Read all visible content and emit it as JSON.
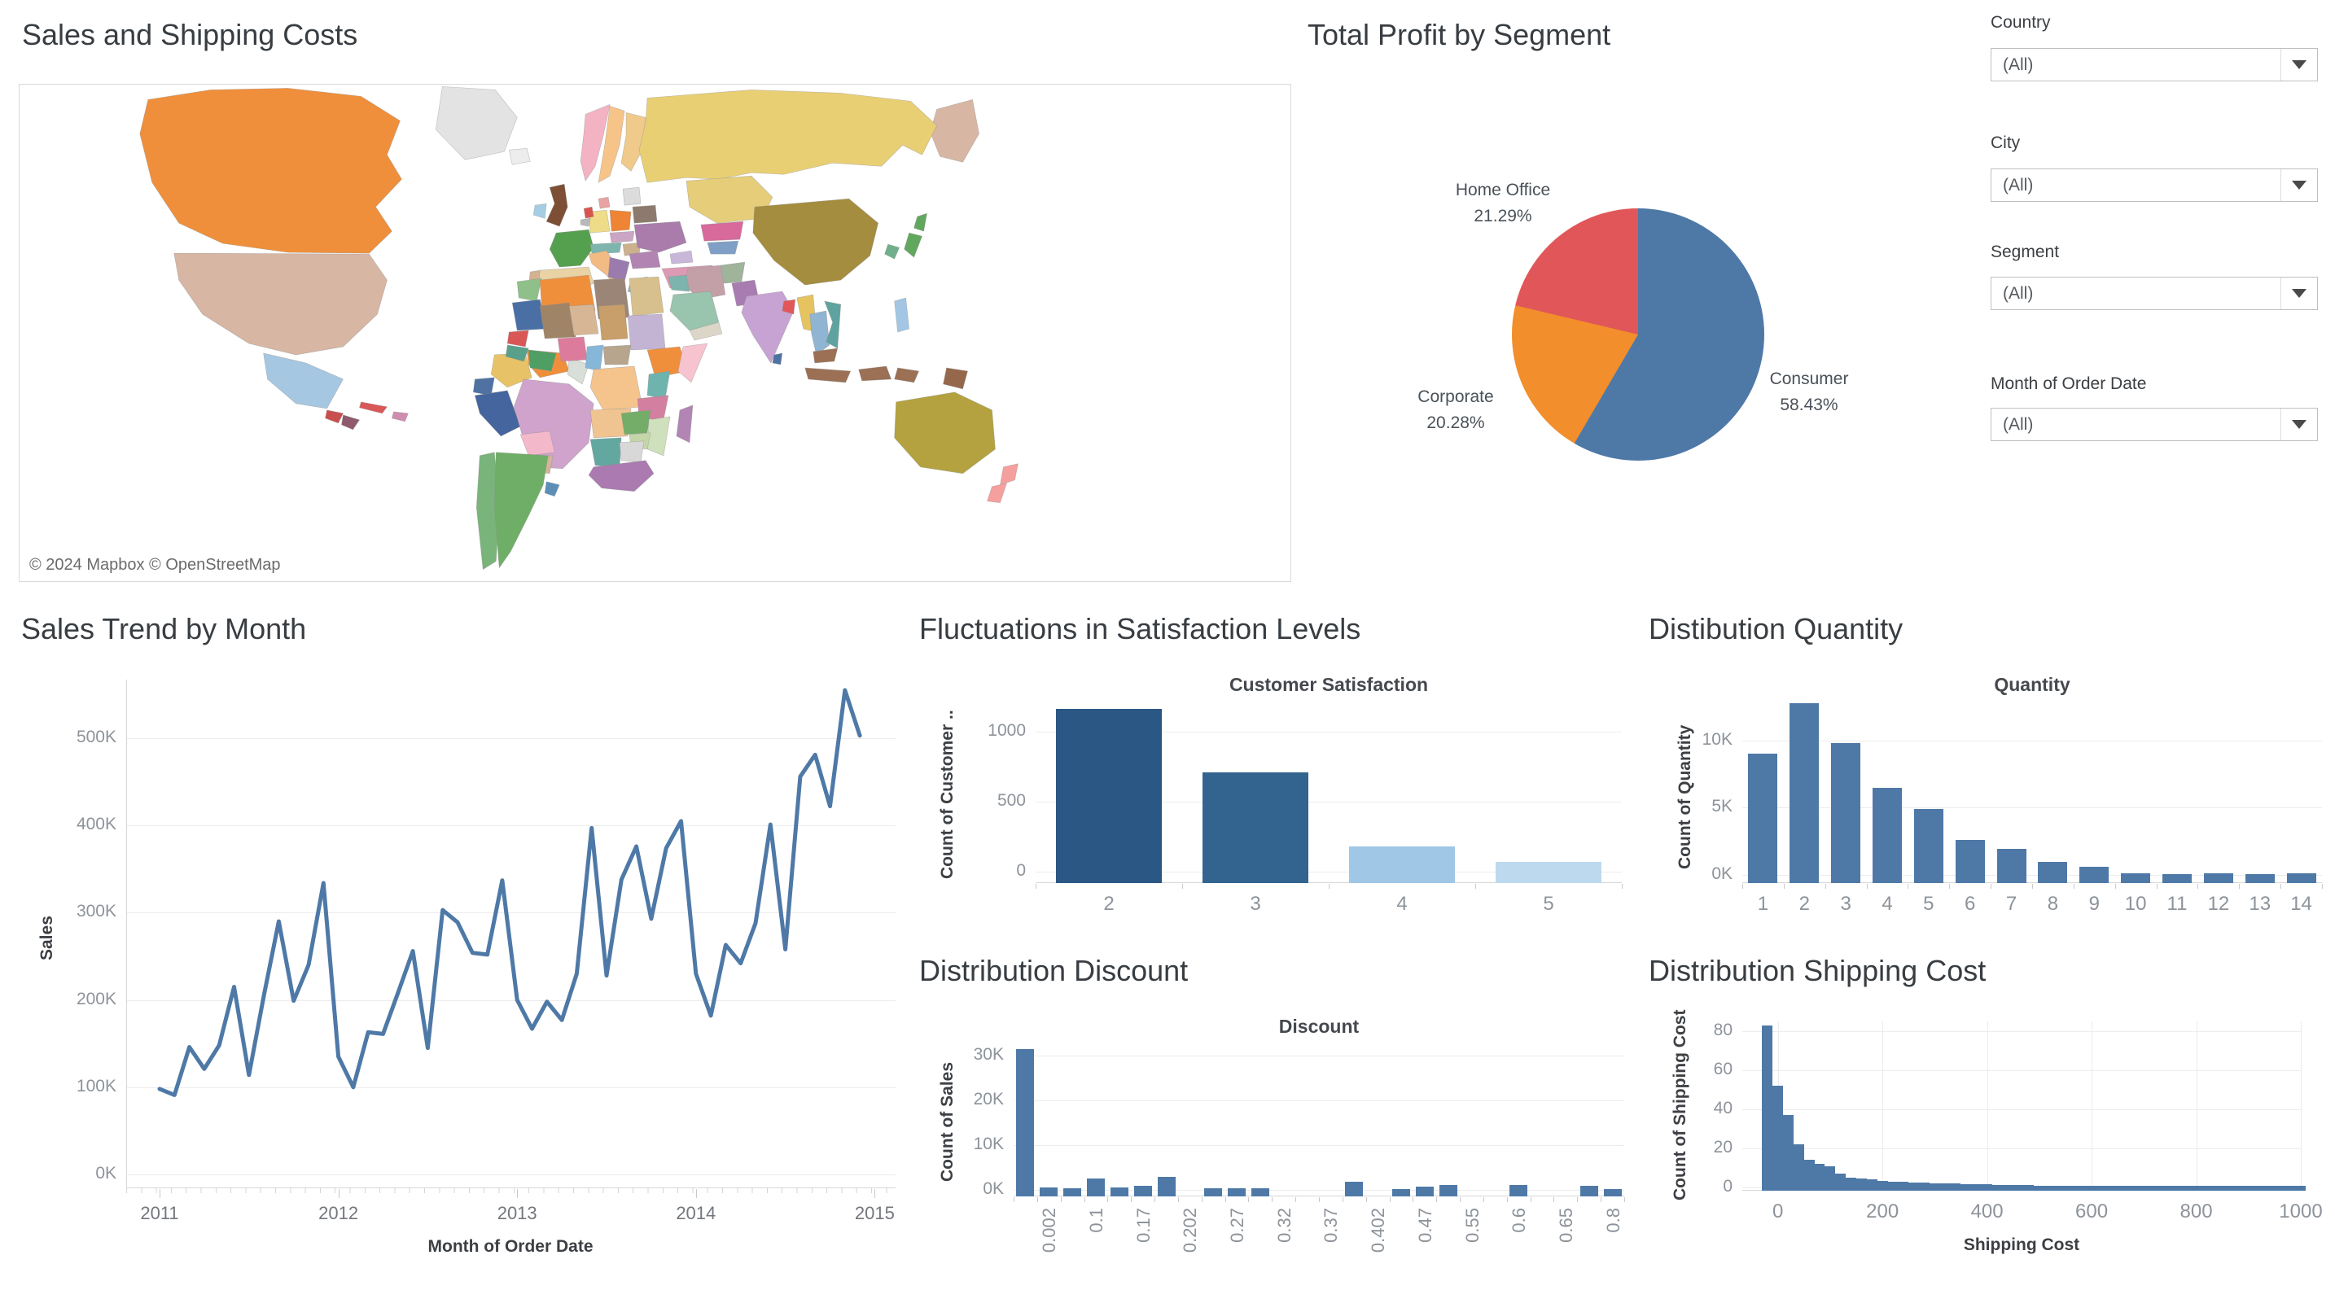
{
  "filters": {
    "items": [
      {
        "label": "Country",
        "value": "(All)"
      },
      {
        "label": "City",
        "value": "(All)"
      },
      {
        "label": "Segment",
        "value": "(All)"
      },
      {
        "label": "Month of Order Date",
        "value": "(All)"
      }
    ]
  },
  "chart_data": [
    {
      "type": "map",
      "panel_title": "Sales and Shipping Costs",
      "attribution": "© 2024 Mapbox © OpenStreetMap",
      "regions": [
        {
          "name": "canada",
          "color": "#ef8f3c"
        },
        {
          "name": "greenland",
          "color": "#e3e3e3"
        },
        {
          "name": "alaska",
          "color": "#d7b6a3"
        },
        {
          "name": "usa",
          "color": "#d7b6a3"
        },
        {
          "name": "mexico",
          "color": "#a6c7e2"
        },
        {
          "name": "guatemala",
          "color": "#c94f4f"
        },
        {
          "name": "honduras",
          "color": "#8f5a6e"
        },
        {
          "name": "cuba",
          "color": "#d95757"
        },
        {
          "name": "hispaniola",
          "color": "#cf8db0"
        },
        {
          "name": "colombia",
          "color": "#e7c266"
        },
        {
          "name": "venezuela",
          "color": "#ef8f3c"
        },
        {
          "name": "guyanas",
          "color": "#d8ded8"
        },
        {
          "name": "ecuador",
          "color": "#4f72a3"
        },
        {
          "name": "peru",
          "color": "#44659e"
        },
        {
          "name": "brazil",
          "color": "#cfa3cb"
        },
        {
          "name": "bolivia",
          "color": "#f4b8cb"
        },
        {
          "name": "paraguay",
          "color": "#d2b49c"
        },
        {
          "name": "chile",
          "color": "#79b47a"
        },
        {
          "name": "argentina",
          "color": "#6fae66"
        },
        {
          "name": "uruguay",
          "color": "#5b8fb8"
        },
        {
          "name": "iceland",
          "color": "#ededed"
        },
        {
          "name": "norway",
          "color": "#f3b3c3"
        },
        {
          "name": "sweden",
          "color": "#f6c489"
        },
        {
          "name": "finland",
          "color": "#f0ca8b"
        },
        {
          "name": "denmark",
          "color": "#e8a2a2"
        },
        {
          "name": "uk",
          "color": "#7d4f35"
        },
        {
          "name": "ireland",
          "color": "#a5cde4"
        },
        {
          "name": "france",
          "color": "#55a04f"
        },
        {
          "name": "spain",
          "color": "#e9d3a4"
        },
        {
          "name": "portugal",
          "color": "#d3b291"
        },
        {
          "name": "germany",
          "color": "#eedc89"
        },
        {
          "name": "netherlands",
          "color": "#d9534f"
        },
        {
          "name": "belgium",
          "color": "#b9b9b9"
        },
        {
          "name": "poland",
          "color": "#ee8434"
        },
        {
          "name": "czechia",
          "color": "#caa6c4"
        },
        {
          "name": "austria",
          "color": "#7fb5af"
        },
        {
          "name": "italy",
          "color": "#f3bb84"
        },
        {
          "name": "ukraine",
          "color": "#a97cab"
        },
        {
          "name": "belarus",
          "color": "#8d7a6e"
        },
        {
          "name": "baltics",
          "color": "#dcdcdc"
        },
        {
          "name": "romania",
          "color": "#b284b2"
        },
        {
          "name": "balkans",
          "color": "#9b7bae"
        },
        {
          "name": "hungary",
          "color": "#cbb18d"
        },
        {
          "name": "greece",
          "color": "#8fb3c9"
        },
        {
          "name": "turkey",
          "color": "#dc9ab4"
        },
        {
          "name": "russia",
          "color": "#e9cf74"
        },
        {
          "name": "kazakhstan",
          "color": "#e5cd7a"
        },
        {
          "name": "central_asia_a",
          "color": "#d76a9a"
        },
        {
          "name": "central_asia_b",
          "color": "#7f9fc6"
        },
        {
          "name": "caucasus",
          "color": "#c8b7d8"
        },
        {
          "name": "mongolia",
          "color": "#f7c08c"
        },
        {
          "name": "china",
          "color": "#a58d3f"
        },
        {
          "name": "japan",
          "color": "#62a75e"
        },
        {
          "name": "skorea",
          "color": "#6fb08a"
        },
        {
          "name": "india",
          "color": "#c7a3d3"
        },
        {
          "name": "pakistan",
          "color": "#a87cb0"
        },
        {
          "name": "afghanistan",
          "color": "#9fb49a"
        },
        {
          "name": "iran",
          "color": "#c3a0a8"
        },
        {
          "name": "iraq",
          "color": "#7eb4ae"
        },
        {
          "name": "saudi",
          "color": "#99c4ad"
        },
        {
          "name": "yemen",
          "color": "#dcd6c8"
        },
        {
          "name": "myanmar",
          "color": "#e5c45f"
        },
        {
          "name": "thailand",
          "color": "#8fb5d2"
        },
        {
          "name": "vietnam",
          "color": "#5fa3a0"
        },
        {
          "name": "bangladesh",
          "color": "#e15759"
        },
        {
          "name": "malaysia",
          "color": "#9b7054"
        },
        {
          "name": "sri_lanka",
          "color": "#4f72a3"
        },
        {
          "name": "indonesia",
          "color": "#9b7054"
        },
        {
          "name": "philippines",
          "color": "#a3c6e4"
        },
        {
          "name": "png",
          "color": "#96684b"
        },
        {
          "name": "australia",
          "color": "#b3a23f"
        },
        {
          "name": "new_zealand",
          "color": "#f5a09e"
        },
        {
          "name": "morocco",
          "color": "#8fc08a"
        },
        {
          "name": "algeria",
          "color": "#ef8f3c"
        },
        {
          "name": "libya",
          "color": "#9b8577"
        },
        {
          "name": "egypt",
          "color": "#d8c08e"
        },
        {
          "name": "mauritania",
          "color": "#4a6fa5"
        },
        {
          "name": "mali",
          "color": "#a08468"
        },
        {
          "name": "niger",
          "color": "#d6b694"
        },
        {
          "name": "chad",
          "color": "#c89e6a"
        },
        {
          "name": "sudan",
          "color": "#c4b4d4"
        },
        {
          "name": "ethiopia",
          "color": "#ef8f3c"
        },
        {
          "name": "somalia",
          "color": "#f6c3cf"
        },
        {
          "name": "senegal",
          "color": "#d95757"
        },
        {
          "name": "guinea",
          "color": "#58a08a"
        },
        {
          "name": "ghana",
          "color": "#4f9e64"
        },
        {
          "name": "nigeria",
          "color": "#dd7b9c"
        },
        {
          "name": "cameroon",
          "color": "#86b6d8"
        },
        {
          "name": "car",
          "color": "#b8a58e"
        },
        {
          "name": "drc",
          "color": "#f4c48c"
        },
        {
          "name": "kenya",
          "color": "#6fb3ae"
        },
        {
          "name": "tanzania",
          "color": "#d37fa0"
        },
        {
          "name": "angola",
          "color": "#f0c490"
        },
        {
          "name": "zambia",
          "color": "#74ad68"
        },
        {
          "name": "mozambique",
          "color": "#cfe0bc"
        },
        {
          "name": "zimbabwe",
          "color": "#c4d6a8"
        },
        {
          "name": "namibia",
          "color": "#63a8a0"
        },
        {
          "name": "botswana",
          "color": "#d8d8d8"
        },
        {
          "name": "south_africa",
          "color": "#aa7ab0"
        },
        {
          "name": "madagascar",
          "color": "#b285b5"
        }
      ]
    },
    {
      "type": "pie",
      "panel_title": "Total Profit by Segment",
      "slices": [
        {
          "label": "Consumer",
          "pct_label": "58.43%",
          "value": 58.43,
          "color": "#4e79a7"
        },
        {
          "label": "Corporate",
          "pct_label": "20.28%",
          "value": 20.28,
          "color": "#f28e2b"
        },
        {
          "label": "Home Office",
          "pct_label": "21.29%",
          "value": 21.29,
          "color": "#e15759"
        }
      ]
    },
    {
      "type": "line",
      "panel_title": "Sales Trend by Month",
      "xlabel": "Month of Order Date",
      "ylabel": "Sales",
      "line_color": "#4e79a7",
      "x_year_ticks": [
        "2011",
        "2012",
        "2013",
        "2014",
        "2015"
      ],
      "y_ticks": [
        {
          "v": 0,
          "label": "0K"
        },
        {
          "v": 100,
          "label": "100K"
        },
        {
          "v": 200,
          "label": "200K"
        },
        {
          "v": 300,
          "label": "300K"
        },
        {
          "v": 400,
          "label": "400K"
        },
        {
          "v": 500,
          "label": "500K"
        }
      ],
      "ylim": [
        0,
        560
      ],
      "values_thousands": [
        98,
        91,
        146,
        121,
        148,
        215,
        114,
        205,
        290,
        199,
        240,
        334,
        135,
        100,
        163,
        161,
        208,
        256,
        145,
        303,
        289,
        254,
        252,
        337,
        200,
        167,
        198,
        177,
        230,
        397,
        228,
        338,
        376,
        293,
        374,
        405,
        230,
        182,
        263,
        242,
        288,
        401,
        258,
        456,
        481,
        422,
        555,
        503
      ]
    },
    {
      "type": "bar",
      "panel_title": "Fluctuations in Satisfaction Levels",
      "chart_title": "Customer Satisfaction",
      "ylabel": "Count of Customer ..",
      "categories": [
        "2",
        "3",
        "4",
        "5"
      ],
      "values": [
        1160,
        710,
        180,
        70
      ],
      "bar_colors": [
        "#2a5784",
        "#33648f",
        "#a1c7e6",
        "#bdd9ee"
      ],
      "y_ticks": [
        {
          "v": 0,
          "label": "0"
        },
        {
          "v": 500,
          "label": "500"
        },
        {
          "v": 1000,
          "label": "1000"
        }
      ],
      "ymax": 1215
    },
    {
      "type": "bar",
      "panel_title": "Distibution Quantity",
      "chart_title": "Quantity",
      "ylabel": "Count of Quantity",
      "categories": [
        "1",
        "2",
        "3",
        "4",
        "5",
        "6",
        "7",
        "8",
        "9",
        "10",
        "11",
        "12",
        "13",
        "14"
      ],
      "values": [
        9000,
        12800,
        9800,
        6500,
        4900,
        2600,
        1950,
        950,
        620,
        150,
        70,
        120,
        60,
        120
      ],
      "bar_color": "#4e79a7",
      "y_ticks": [
        {
          "v": 0,
          "label": "0K"
        },
        {
          "v": 5000,
          "label": "5K"
        },
        {
          "v": 10000,
          "label": "10K"
        }
      ],
      "ymax": 12900
    },
    {
      "type": "bar",
      "panel_title": "Distribution Discount",
      "chart_title": "Discount",
      "ylabel": "Count of Sales",
      "slot_count": 26,
      "bar_color": "#4e79a7",
      "bars": [
        {
          "slot": 0,
          "value": 31500
        },
        {
          "slot": 1,
          "value": 600
        },
        {
          "slot": 2,
          "value": 300
        },
        {
          "slot": 3,
          "value": 2600
        },
        {
          "slot": 4,
          "value": 600
        },
        {
          "slot": 5,
          "value": 1000
        },
        {
          "slot": 6,
          "value": 3000
        },
        {
          "slot": 8,
          "value": 300
        },
        {
          "slot": 9,
          "value": 300
        },
        {
          "slot": 10,
          "value": 300
        },
        {
          "slot": 14,
          "value": 1800
        },
        {
          "slot": 16,
          "value": 250
        },
        {
          "slot": 17,
          "value": 800
        },
        {
          "slot": 18,
          "value": 1100
        },
        {
          "slot": 21,
          "value": 1100
        },
        {
          "slot": 24,
          "value": 1000
        },
        {
          "slot": 25,
          "value": 250
        }
      ],
      "x_labels": [
        {
          "slot": 1,
          "text": "0.002"
        },
        {
          "slot": 3,
          "text": "0.1"
        },
        {
          "slot": 5,
          "text": "0.17"
        },
        {
          "slot": 7,
          "text": "0.202"
        },
        {
          "slot": 9,
          "text": "0.27"
        },
        {
          "slot": 11,
          "text": "0.32"
        },
        {
          "slot": 13,
          "text": "0.37"
        },
        {
          "slot": 15,
          "text": "0.402"
        },
        {
          "slot": 17,
          "text": "0.47"
        },
        {
          "slot": 19,
          "text": "0.55"
        },
        {
          "slot": 21,
          "text": "0.6"
        },
        {
          "slot": 23,
          "text": "0.65"
        },
        {
          "slot": 25,
          "text": "0.8"
        }
      ],
      "y_ticks": [
        {
          "v": 0,
          "label": "0K"
        },
        {
          "v": 10000,
          "label": "10K"
        },
        {
          "v": 20000,
          "label": "20K"
        },
        {
          "v": 30000,
          "label": "30K"
        }
      ],
      "ymax": 32700
    },
    {
      "type": "histogram",
      "panel_title": "Distribution Shipping Cost",
      "xlabel": "Shipping Cost",
      "ylabel": "Count of Shipping Cost",
      "bar_color": "#4e79a7",
      "bin_start": -30,
      "bin_width": 20,
      "counts": [
        83,
        52,
        37,
        22,
        14,
        12,
        11,
        7,
        5,
        4.5,
        4,
        3.5,
        3,
        3,
        2.5,
        2.5,
        2.2,
        2,
        2,
        1.8,
        1.6,
        1.5,
        1.4,
        1.3,
        1.2,
        1.1,
        1,
        1,
        0.9,
        0.9,
        0.8,
        0.8,
        0.8,
        0.8,
        0.8,
        0.8,
        0.8,
        0.8,
        0.8,
        0.8,
        0.8,
        0.8,
        0.8,
        0.8,
        0.8,
        0.8,
        0.8,
        0.8,
        0.8,
        0.8,
        0.8,
        0.8
      ],
      "x_ticks": [
        {
          "v": 0,
          "label": "0"
        },
        {
          "v": 200,
          "label": "200"
        },
        {
          "v": 400,
          "label": "400"
        },
        {
          "v": 600,
          "label": "600"
        },
        {
          "v": 800,
          "label": "800"
        },
        {
          "v": 1000,
          "label": "1000"
        }
      ],
      "y_ticks": [
        {
          "v": 0,
          "label": "0"
        },
        {
          "v": 20,
          "label": "20"
        },
        {
          "v": 40,
          "label": "40"
        },
        {
          "v": 60,
          "label": "60"
        },
        {
          "v": 80,
          "label": "80"
        }
      ],
      "xlim": [
        -68,
        1000
      ],
      "ymax": 85
    }
  ]
}
